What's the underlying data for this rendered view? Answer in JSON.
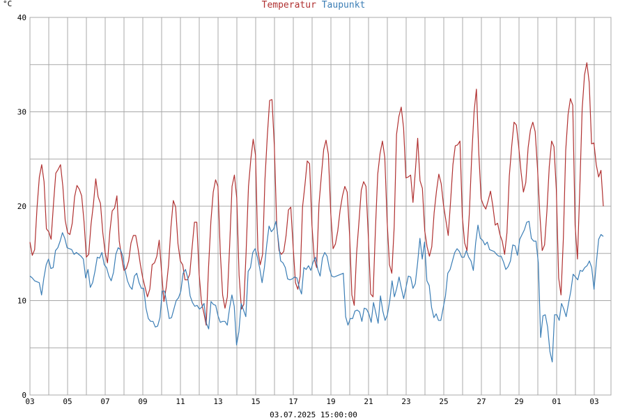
{
  "chart_data": {
    "type": "line",
    "ylabel": "°C",
    "ylim": [
      0,
      40
    ],
    "yticks": [
      0,
      10,
      20,
      30,
      40
    ],
    "x_tick_labels": [
      "03",
      "05",
      "07",
      "09",
      "11",
      "13",
      "15",
      "17",
      "19",
      "21",
      "23",
      "25",
      "27",
      "29",
      "01",
      "03"
    ],
    "footer": "03.07.2025 15:00:00",
    "grid": true,
    "legend_position": "top-center",
    "series": [
      {
        "name": "Temperatur",
        "color": "#b03030",
        "values": [
          16.2,
          14.8,
          15.4,
          19.8,
          23.1,
          24.4,
          22.6,
          17.6,
          17.3,
          16.5,
          20.2,
          23.5,
          23.9,
          24.4,
          22.1,
          18.5,
          17.2,
          17.0,
          18.2,
          21.0,
          22.2,
          21.8,
          21.1,
          18.4,
          14.6,
          14.9,
          18.1,
          20.2,
          22.9,
          21.0,
          20.3,
          17.2,
          15.1,
          14.0,
          17.3,
          19.5,
          19.8,
          21.1,
          16.3,
          14.6,
          13.2,
          13.4,
          14.2,
          16.1,
          16.9,
          16.9,
          15.5,
          13.8,
          12.4,
          11.4,
          10.4,
          11.2,
          13.8,
          14.0,
          14.7,
          16.4,
          13.1,
          9.9,
          11.4,
          13.8,
          17.8,
          20.6,
          19.9,
          16.0,
          14.2,
          13.8,
          12.2,
          12.2,
          12.8,
          15.6,
          18.3,
          18.3,
          12.8,
          9.8,
          8.7,
          7.4,
          13.5,
          18.4,
          21.5,
          22.8,
          22.1,
          15.1,
          10.6,
          9.2,
          10.4,
          15.9,
          22.1,
          23.3,
          20.9,
          12.7,
          9.1,
          9.6,
          15.2,
          22.1,
          25.0,
          27.1,
          25.4,
          15.3,
          13.8,
          14.9,
          22.8,
          27.4,
          31.2,
          31.3,
          26.4,
          18.1,
          15.3,
          14.9,
          15.2,
          16.9,
          19.6,
          19.9,
          15.7,
          11.9,
          11.2,
          12.6,
          19.9,
          22.2,
          24.8,
          24.5,
          18.0,
          14.4,
          13.5,
          20.2,
          23.2,
          26.0,
          27.0,
          25.5,
          19.3,
          15.5,
          16.0,
          17.4,
          19.6,
          21.1,
          22.1,
          21.5,
          17.1,
          10.6,
          9.5,
          15.0,
          18.3,
          21.7,
          22.6,
          22.1,
          16.8,
          10.7,
          10.4,
          17.4,
          23.4,
          25.6,
          26.9,
          25.2,
          18.4,
          13.8,
          12.9,
          17.8,
          27.6,
          29.5,
          30.5,
          28.3,
          23.0,
          23.1,
          23.3,
          20.4,
          23.7,
          27.2,
          22.7,
          21.9,
          17.4,
          15.7,
          14.7,
          15.7,
          19.3,
          21.6,
          23.4,
          22.4,
          20.1,
          18.5,
          16.9,
          20.5,
          24.4,
          26.4,
          26.5,
          26.9,
          18.9,
          16.1,
          15.3,
          19.3,
          25.3,
          30.0,
          32.4,
          25.7,
          20.8,
          20.1,
          19.7,
          20.6,
          21.6,
          20.0,
          18.0,
          18.2,
          17.0,
          16.3,
          14.9,
          17.2,
          23.2,
          26.3,
          28.9,
          28.6,
          26.3,
          23.6,
          21.5,
          22.5,
          26.2,
          28.1,
          28.9,
          27.9,
          24.0,
          19.1,
          15.3,
          15.9,
          19.5,
          24.2,
          26.9,
          26.3,
          21.8,
          12.4,
          10.6,
          16.6,
          25.9,
          29.7,
          31.4,
          30.7,
          18.0,
          14.4,
          21.9,
          30.3,
          33.9,
          35.2,
          33.1,
          26.6,
          26.7,
          24.4,
          23.1,
          23.8,
          20.0
        ],
        "marks": []
      },
      {
        "name": "Taupunkt",
        "color": "#3a7db5",
        "values": [
          12.6,
          12.4,
          12.1,
          12.0,
          11.9,
          10.6,
          12.4,
          13.8,
          14.4,
          13.4,
          13.5,
          15.3,
          15.6,
          16.3,
          17.2,
          16.6,
          15.6,
          15.5,
          15.4,
          14.9,
          15.1,
          14.9,
          14.7,
          14.4,
          12.4,
          13.3,
          11.4,
          11.9,
          13.1,
          14.6,
          14.5,
          15.1,
          13.8,
          13.5,
          12.6,
          12.1,
          13.0,
          14.9,
          15.6,
          15.4,
          14.7,
          13.2,
          12.1,
          11.5,
          11.2,
          12.6,
          12.9,
          11.9,
          11.3,
          11.3,
          9.2,
          8.1,
          7.8,
          7.8,
          7.2,
          7.3,
          8.2,
          11.0,
          11.0,
          9.6,
          8.1,
          8.2,
          9.1,
          10.0,
          10.3,
          11.0,
          12.9,
          13.3,
          12.4,
          10.5,
          9.8,
          9.4,
          9.5,
          9.1,
          9.3,
          9.7,
          7.6,
          7.0,
          9.9,
          9.6,
          9.5,
          8.4,
          7.7,
          7.8,
          7.8,
          7.4,
          9.2,
          10.6,
          9.4,
          5.3,
          6.7,
          9.7,
          9.0,
          8.3,
          13.1,
          13.5,
          15.1,
          15.5,
          14.6,
          13.4,
          11.9,
          13.5,
          15.9,
          17.9,
          17.3,
          17.6,
          18.4,
          16.4,
          14.2,
          14.0,
          13.5,
          12.3,
          12.2,
          12.3,
          12.5,
          12.4,
          11.4,
          10.7,
          13.5,
          13.3,
          13.7,
          13.2,
          14.1,
          14.6,
          13.3,
          12.6,
          14.5,
          15.1,
          14.7,
          13.4,
          12.6,
          12.5,
          12.6,
          12.7,
          12.8,
          12.9,
          8.3,
          7.4,
          8.1,
          8.1,
          8.9,
          9.0,
          8.8,
          7.8,
          9.2,
          9.1,
          8.6,
          7.7,
          9.8,
          8.7,
          7.6,
          10.5,
          8.9,
          7.9,
          8.5,
          10.0,
          12.1,
          10.4,
          11.3,
          12.5,
          11.3,
          10.2,
          11.4,
          12.6,
          12.5,
          11.3,
          11.8,
          14.0,
          16.6,
          14.4,
          16.2,
          12.1,
          11.6,
          9.3,
          8.2,
          8.6,
          7.9,
          7.9,
          9.2,
          10.5,
          12.9,
          13.3,
          14.2,
          15.1,
          15.5,
          15.2,
          14.6,
          14.6,
          15.3,
          14.6,
          14.2,
          13.2,
          16.1,
          18.0,
          16.6,
          16.4,
          15.9,
          16.2,
          15.4,
          15.3,
          15.2,
          14.9,
          14.7,
          14.7,
          14.1,
          13.3,
          13.6,
          14.2,
          15.9,
          15.8,
          14.8,
          16.5,
          17.0,
          17.5,
          18.3,
          18.4,
          16.6,
          16.3,
          16.3,
          14.0,
          6.1,
          8.4,
          8.5,
          7.2,
          4.6,
          3.5,
          8.5,
          8.5,
          7.9,
          9.7,
          9.1,
          8.3,
          9.7,
          11.0,
          12.8,
          12.5,
          12.2,
          13.2,
          13.1,
          13.5,
          13.7,
          14.2,
          13.5,
          11.2,
          14.0,
          16.5,
          17.0,
          16.8
        ],
        "marks": []
      }
    ]
  }
}
